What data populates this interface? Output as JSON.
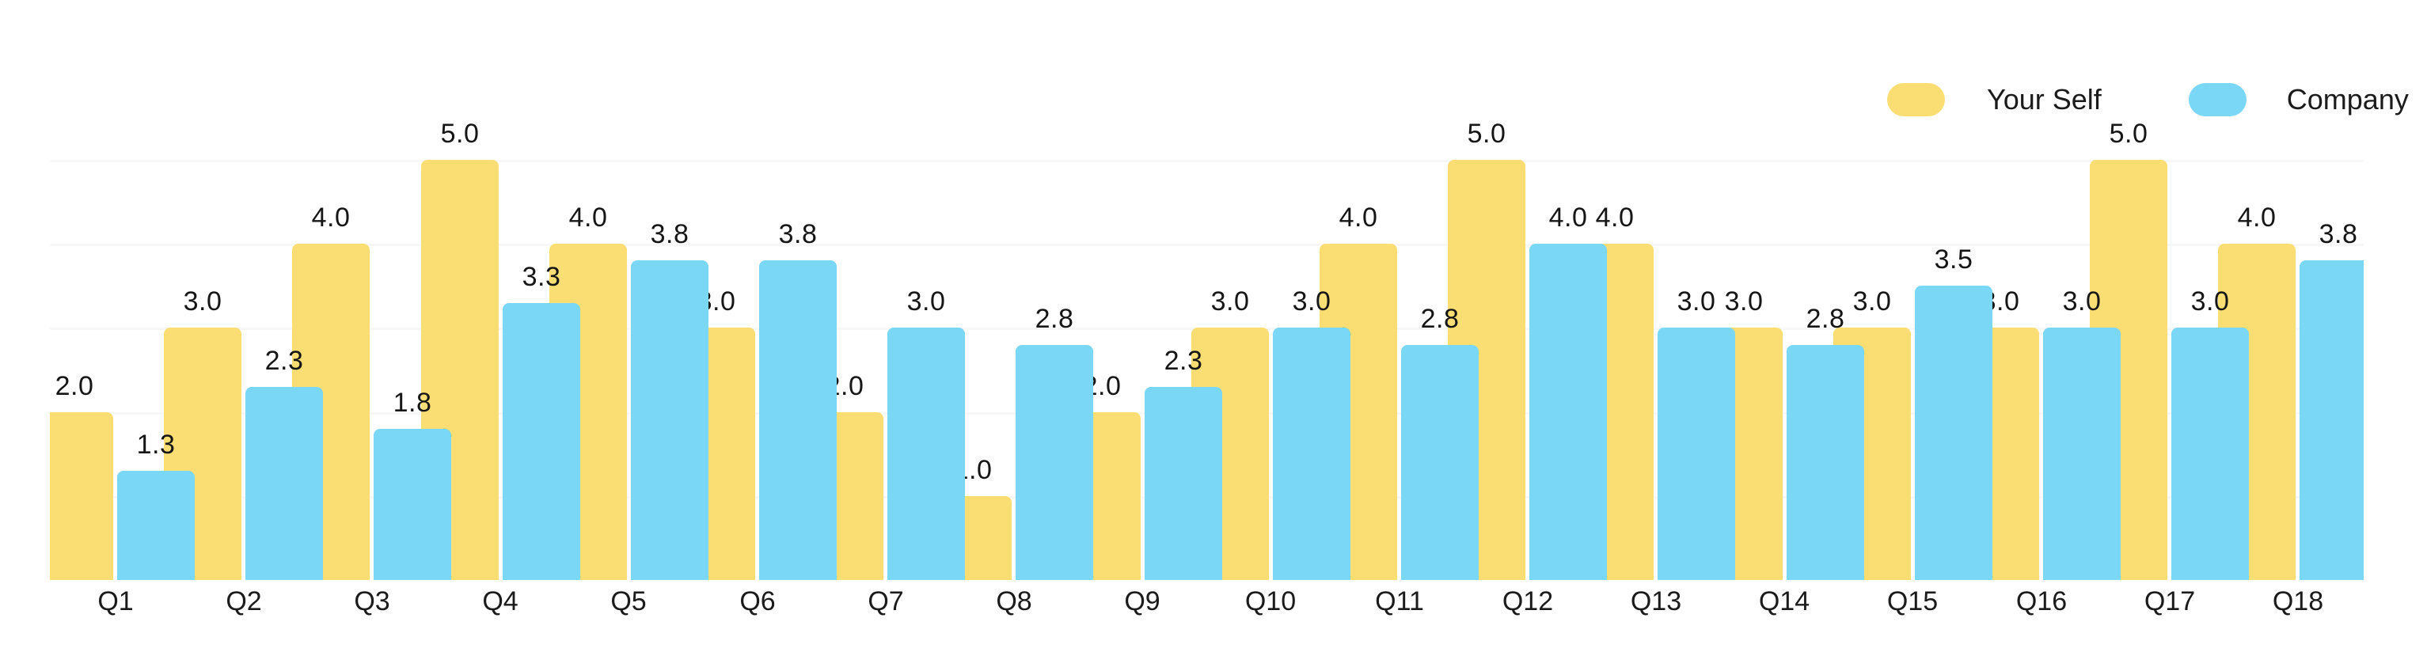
{
  "chart_data": {
    "type": "bar",
    "title": "",
    "xlabel": "",
    "ylabel": "",
    "categories": [
      "Q1",
      "Q2",
      "Q3",
      "Q4",
      "Q5",
      "Q6",
      "Q7",
      "Q8",
      "Q9",
      "Q10",
      "Q11",
      "Q12",
      "Q13",
      "Q14",
      "Q15",
      "Q16",
      "Q17",
      "Q18"
    ],
    "series": [
      {
        "name": "Your Self",
        "color": "#FADE73",
        "values": [
          2.0,
          3.0,
          4.0,
          5.0,
          4.0,
          3.0,
          2.0,
          1.0,
          2.0,
          3.0,
          4.0,
          5.0,
          4.0,
          3.0,
          3.0,
          3.0,
          5.0,
          4.0
        ]
      },
      {
        "name": "Company",
        "color": "#7BD7F6",
        "values": [
          1.3,
          2.3,
          1.8,
          3.3,
          3.8,
          3.8,
          3.0,
          2.8,
          2.3,
          3.0,
          2.8,
          4.0,
          3.0,
          2.8,
          3.5,
          3.0,
          3.0,
          3.8
        ]
      }
    ],
    "ylim": [
      0,
      5
    ],
    "gridline_values": [
      1,
      2,
      3,
      4,
      5
    ],
    "value_label_format": "1 decimal place above each bar",
    "legend_position": "top-right",
    "grid": true
  },
  "colors": {
    "background": "#ffffff",
    "gridline": "#f7f7f7",
    "label_text": "#161616"
  }
}
